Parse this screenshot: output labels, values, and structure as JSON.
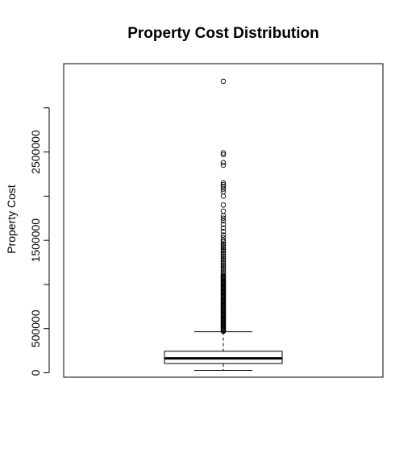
{
  "chart_data": {
    "type": "boxplot",
    "title": "Property Cost Distribution",
    "xlabel": "",
    "ylabel": "Property Cost",
    "ylim": [
      -50000,
      3500000
    ],
    "y_ticks": [
      0,
      500000,
      1000000,
      1500000,
      2000000,
      2500000,
      3000000
    ],
    "y_tick_labels": [
      "0",
      "500000",
      "",
      "1500000",
      "",
      "2500000",
      ""
    ],
    "grid": false,
    "legend": "none",
    "boxes": [
      {
        "name": "",
        "whisker_low": 28000,
        "q1": 105000,
        "median": 163000,
        "q3": 244000,
        "whisker_high": 465000,
        "outliers": [
          470000,
          480000,
          490000,
          500000,
          510000,
          520000,
          530000,
          540000,
          550000,
          560000,
          570000,
          580000,
          590000,
          600000,
          610000,
          620000,
          630000,
          640000,
          650000,
          660000,
          670000,
          680000,
          690000,
          700000,
          710000,
          720000,
          730000,
          740000,
          750000,
          760000,
          770000,
          780000,
          790000,
          800000,
          810000,
          820000,
          830000,
          840000,
          850000,
          860000,
          870000,
          880000,
          890000,
          900000,
          910000,
          920000,
          930000,
          940000,
          950000,
          960000,
          970000,
          980000,
          990000,
          1000000,
          1010000,
          1020000,
          1030000,
          1040000,
          1050000,
          1060000,
          1070000,
          1080000,
          1090000,
          1100000,
          1120000,
          1140000,
          1160000,
          1180000,
          1200000,
          1220000,
          1240000,
          1260000,
          1280000,
          1300000,
          1320000,
          1340000,
          1360000,
          1380000,
          1400000,
          1420000,
          1440000,
          1460000,
          1480000,
          1500000,
          1530000,
          1560000,
          1600000,
          1640000,
          1680000,
          1720000,
          1750000,
          1780000,
          1830000,
          1900000,
          2000000,
          2050000,
          2080000,
          2110000,
          2130000,
          2150000,
          2350000,
          2380000,
          2470000,
          2490000,
          3300000
        ]
      }
    ]
  }
}
